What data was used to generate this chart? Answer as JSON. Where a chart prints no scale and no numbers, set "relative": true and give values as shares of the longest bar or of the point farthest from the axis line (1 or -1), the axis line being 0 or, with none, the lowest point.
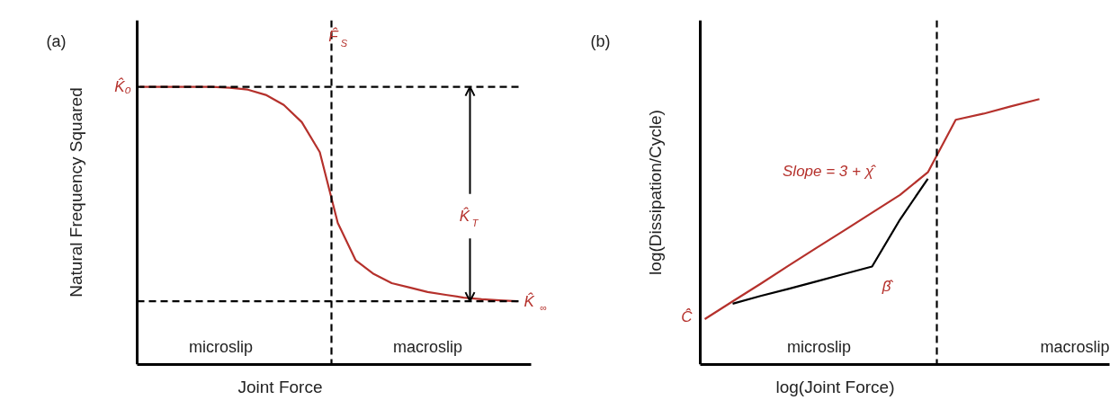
{
  "chart_data": [
    {
      "type": "line",
      "title": "(a)",
      "xlabel": "Joint Force",
      "ylabel": "Natural Frequency Squared",
      "relative": true,
      "categories": [
        null,
        null,
        null,
        null,
        null,
        null,
        null,
        null,
        null,
        null,
        null,
        null,
        null,
        null,
        null,
        null,
        null,
        null,
        null,
        null,
        null,
        null
      ],
      "series": [
        {
          "color": "#b5312c",
          "values": [
            1.0,
            1.0,
            1.0,
            1.0,
            1.0,
            0.997,
            0.99,
            0.971,
            0.935,
            0.873,
            0.765,
            0.51,
            0.375,
            0.326,
            0.293,
            0.277,
            0.261,
            0.251,
            0.241,
            0.235,
            0.231,
            0.228
          ]
        }
      ],
      "ref_lines": [
        {
          "axis": "y",
          "value": 1.0,
          "label": "K̂₀",
          "line_style": "dashed",
          "color": "#000000"
        },
        {
          "axis": "y",
          "value": 0.228,
          "label": "K̂$_{∞}$",
          "line_style": "dashed",
          "color": "#000000"
        }
      ],
      "annotations": [
        "microslip",
        "macroslip",
        "K̂$_{T}$",
        "F̂$_{S}$"
      ]
    },
    {
      "type": "line",
      "title": "(b)",
      "xlabel": "log(Joint Force)",
      "ylabel": "log(Dissipation/Cycle)",
      "relative": true,
      "categories": [
        null,
        null,
        null,
        null,
        null,
        null,
        null,
        null,
        null,
        null,
        null,
        null,
        null
      ],
      "series": [
        {
          "color": "#b5312c",
          "values": [
            0.171,
            0.238,
            0.304,
            0.372,
            0.439,
            0.505,
            0.572,
            0.639,
            0.724,
            0.922,
            0.945,
            0.973,
            1.0
          ]
        },
        {
          "color": "#000000",
          "values": [
            null,
            0.229,
            0.258,
            0.285,
            0.313,
            0.341,
            0.369,
            0.546,
            0.7,
            null,
            null,
            null,
            null
          ]
        }
      ],
      "annotations": [
        "microslip",
        "macroslip",
        "Slope = 3 + χ̂",
        "β̂",
        "Ĉ"
      ]
    }
  ]
}
